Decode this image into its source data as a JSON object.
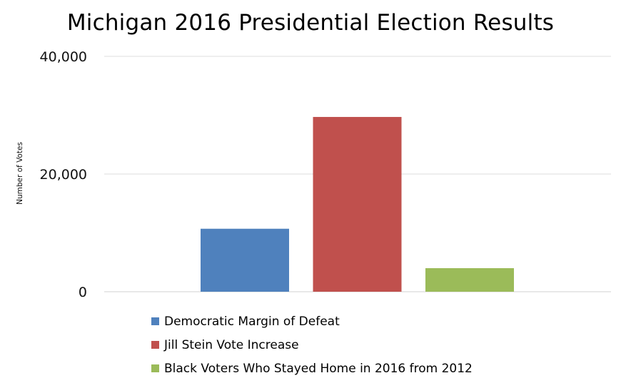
{
  "chart_data": {
    "type": "bar",
    "title": "Michigan 2016 Presidential Election Results",
    "xlabel": "",
    "ylabel": "Number of Votes",
    "ylim": [
      0,
      40000
    ],
    "yticks": [
      0,
      20000,
      40000
    ],
    "ytick_labels": [
      "0",
      "20,000",
      "40,000"
    ],
    "grid": true,
    "legend_position": "bottom",
    "series": [
      {
        "name": "Democratic Margin of Defeat",
        "value": 10700,
        "color": "#4f81bd"
      },
      {
        "name": "Jill Stein Vote Increase",
        "value": 29700,
        "color": "#c0504d"
      },
      {
        "name": "Black Voters Who Stayed Home in 2016 from 2012",
        "value": 4000,
        "color": "#9bbb59"
      }
    ]
  }
}
